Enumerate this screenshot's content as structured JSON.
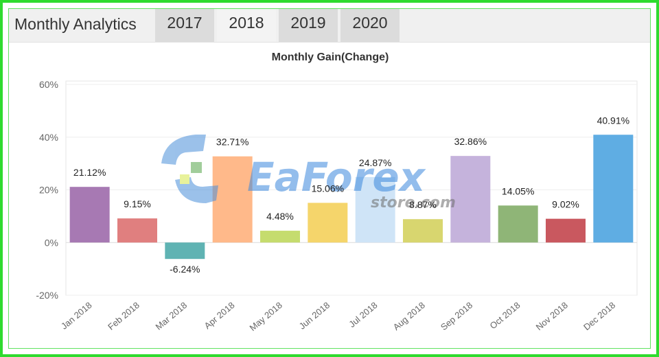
{
  "header": {
    "title": "Monthly Analytics",
    "tabs": [
      {
        "label": "2017",
        "active": false
      },
      {
        "label": "2018",
        "active": true
      },
      {
        "label": "2019",
        "active": false
      },
      {
        "label": "2020",
        "active": false
      }
    ]
  },
  "watermark": {
    "brand": "EaForex",
    "domain": "store.com"
  },
  "colors": {
    "frame": "#2edb2e",
    "tab_active": "#f3f3f3",
    "tab_inactive": "#dcdcdc"
  },
  "chart_data": {
    "type": "bar",
    "title": "Monthly Gain(Change)",
    "xlabel": "",
    "ylabel": "",
    "ylim": [
      -20,
      60
    ],
    "yticks": [
      60,
      40,
      20,
      0,
      -20
    ],
    "ytick_labels": [
      "60%",
      "40%",
      "20%",
      "0%",
      "-20%"
    ],
    "grid": "horizontal",
    "categories": [
      "Jan 2018",
      "Feb 2018",
      "Mar 2018",
      "Apr 2018",
      "May 2018",
      "Jun 2018",
      "Jul 2018",
      "Aug 2018",
      "Sep 2018",
      "Oct 2018",
      "Nov 2018",
      "Dec 2018"
    ],
    "values": [
      21.12,
      9.15,
      -6.24,
      32.71,
      4.48,
      15.06,
      24.87,
      8.87,
      32.86,
      14.05,
      9.02,
      40.91
    ],
    "data_labels": [
      "21.12%",
      "9.15%",
      "-6.24%",
      "32.71%",
      "4.48%",
      "15.06%",
      "24.87%",
      "8.87%",
      "32.86%",
      "14.05%",
      "9.02%",
      "40.91%"
    ],
    "bar_colors": [
      "#a779b3",
      "#e07f7f",
      "#5fb3b3",
      "#ffb98a",
      "#c5dc6e",
      "#f5d56b",
      "#cfe4f7",
      "#d8d66f",
      "#c5b3dc",
      "#8fb577",
      "#c9585f",
      "#5fade3"
    ]
  }
}
